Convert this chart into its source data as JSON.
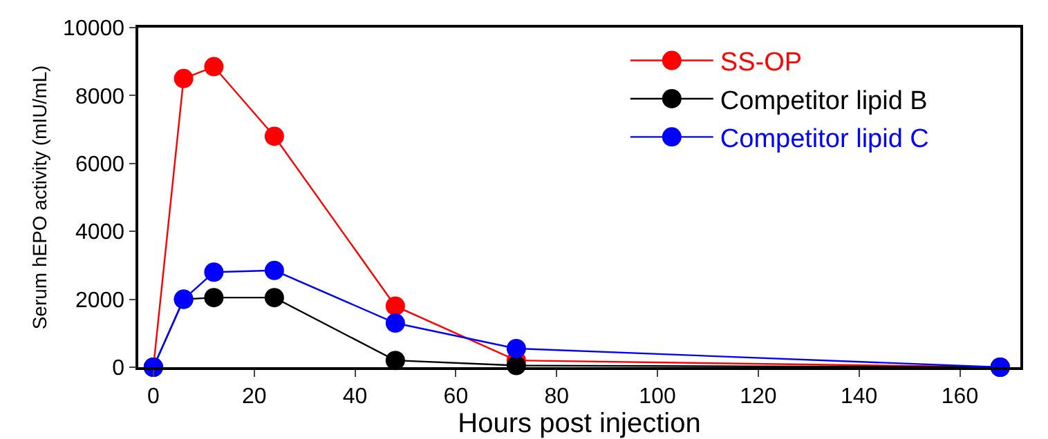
{
  "chart_data": {
    "type": "line",
    "xlabel": "Hours post injection",
    "ylabel": "Serum hEPO activity (mIU/mL)",
    "x": [
      0,
      6,
      12,
      24,
      48,
      72,
      168
    ],
    "series": [
      {
        "name": "SS-OP",
        "color": "#ff0000",
        "values": [
          0,
          8500,
          8850,
          6800,
          1800,
          200,
          0
        ]
      },
      {
        "name": "Competitor lipid B",
        "color": "#000000",
        "values": [
          0,
          2000,
          2050,
          2050,
          200,
          50,
          0
        ]
      },
      {
        "name": "Competitor lipid C",
        "color": "#0000ff",
        "values": [
          0,
          2000,
          2800,
          2850,
          1300,
          550,
          0
        ]
      }
    ],
    "xlim": [
      -3,
      172
    ],
    "xticks": [
      0,
      20,
      40,
      60,
      80,
      100,
      120,
      140,
      160
    ],
    "ylim": [
      0,
      10000
    ],
    "yticks": [
      0,
      2000,
      4000,
      6000,
      8000,
      10000
    ],
    "grid": false,
    "legend": "top right",
    "marker": "circle",
    "line_style": "solid"
  }
}
